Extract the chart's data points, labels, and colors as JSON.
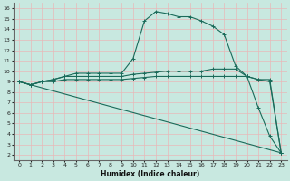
{
  "xlabel": "Humidex (Indice chaleur)",
  "bg_color": "#c8e8e0",
  "grid_color": "#aad4cc",
  "line_color": "#1a6b5a",
  "xlim": [
    -0.5,
    23.5
  ],
  "ylim": [
    1.5,
    16.5
  ],
  "xticks": [
    0,
    1,
    2,
    3,
    4,
    5,
    6,
    7,
    8,
    9,
    10,
    11,
    12,
    13,
    14,
    15,
    16,
    17,
    18,
    19,
    20,
    21,
    22,
    23
  ],
  "yticks": [
    2,
    3,
    4,
    5,
    6,
    7,
    8,
    9,
    10,
    11,
    12,
    13,
    14,
    15,
    16
  ],
  "series": [
    {
      "x": [
        0,
        1,
        2,
        3,
        4,
        5,
        6,
        7,
        8,
        9,
        10,
        11,
        12,
        13,
        14,
        15,
        16,
        17,
        18,
        19,
        20,
        21,
        22,
        23
      ],
      "y": [
        9,
        8.7,
        9,
        9.2,
        9.5,
        9.8,
        9.8,
        9.8,
        9.8,
        9.8,
        11.2,
        14.8,
        15.7,
        15.5,
        15.2,
        15.2,
        14.8,
        14.3,
        13.5,
        10.5,
        9.5,
        6.5,
        3.8,
        2.2
      ],
      "marker": "+"
    },
    {
      "x": [
        0,
        1,
        2,
        3,
        4,
        5,
        6,
        7,
        8,
        9,
        10,
        11,
        12,
        13,
        14,
        15,
        16,
        17,
        18,
        19,
        20,
        21,
        22,
        23
      ],
      "y": [
        9,
        8.7,
        9,
        9.2,
        9.5,
        9.5,
        9.5,
        9.5,
        9.5,
        9.5,
        9.7,
        9.8,
        9.9,
        10.0,
        10.0,
        10.0,
        10.0,
        10.2,
        10.2,
        10.2,
        9.5,
        9.2,
        9.2,
        2.2
      ],
      "marker": "+"
    },
    {
      "x": [
        0,
        1,
        2,
        3,
        4,
        5,
        6,
        7,
        8,
        9,
        10,
        11,
        12,
        13,
        14,
        15,
        16,
        17,
        18,
        19,
        20,
        21,
        22,
        23
      ],
      "y": [
        9,
        8.7,
        9,
        9,
        9.2,
        9.2,
        9.2,
        9.2,
        9.2,
        9.2,
        9.3,
        9.4,
        9.5,
        9.5,
        9.5,
        9.5,
        9.5,
        9.5,
        9.5,
        9.5,
        9.5,
        9.2,
        9.0,
        2.2
      ],
      "marker": "+"
    },
    {
      "x": [
        0,
        23
      ],
      "y": [
        9,
        2.2
      ],
      "marker": null
    }
  ]
}
